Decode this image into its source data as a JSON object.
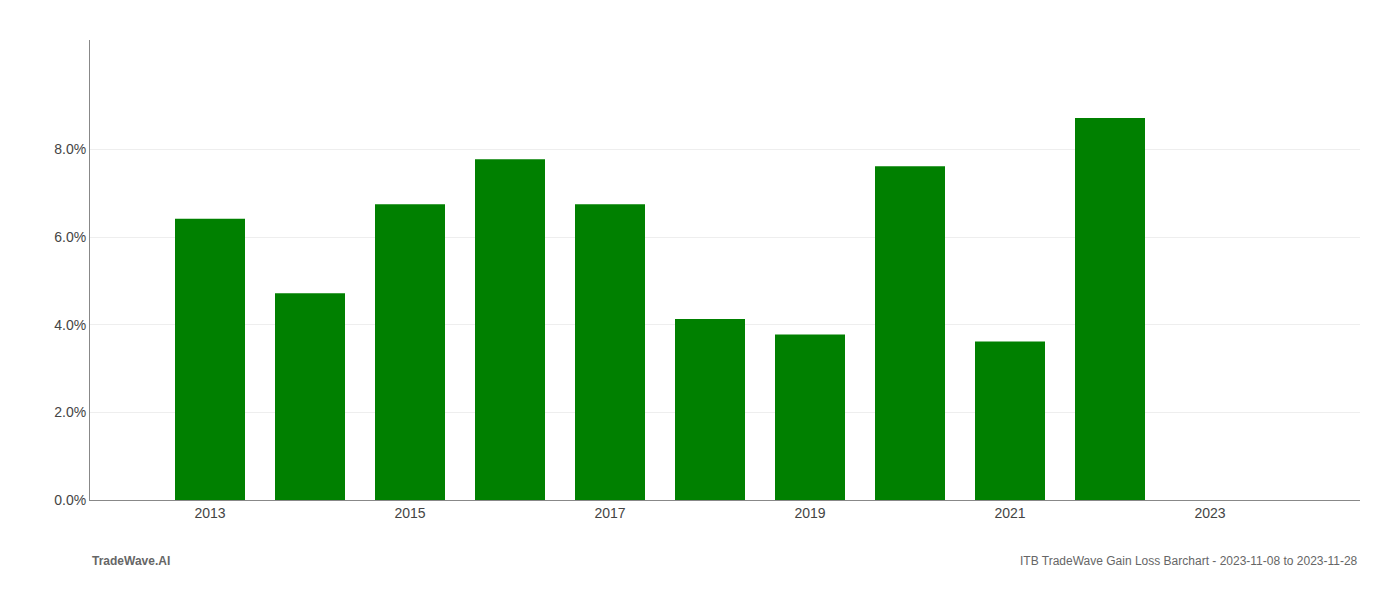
{
  "chart_data": {
    "type": "bar",
    "x": [
      2013,
      2014,
      2015,
      2016,
      2017,
      2018,
      2019,
      2020,
      2021,
      2022
    ],
    "values": [
      0.0642,
      0.0472,
      0.0675,
      0.0778,
      0.0675,
      0.0413,
      0.0378,
      0.0762,
      0.0362,
      0.0872
    ],
    "color": "#008000",
    "xlim": [
      2011.8,
      2024.5
    ],
    "xticks": [
      2013,
      2015,
      2017,
      2019,
      2021,
      2023
    ],
    "ylim": [
      0,
      0.105
    ],
    "yticks": [
      {
        "value": 0.0,
        "label": "0.0%"
      },
      {
        "value": 0.02,
        "label": "2.0%"
      },
      {
        "value": 0.04,
        "label": "4.0%"
      },
      {
        "value": 0.06,
        "label": "6.0%"
      },
      {
        "value": 0.08,
        "label": "8.0%"
      }
    ],
    "grid": true,
    "annotations": [
      "TradeWave.AI",
      "ITB TradeWave Gain Loss Barchart - 2023-11-08 to 2023-11-28"
    ]
  }
}
